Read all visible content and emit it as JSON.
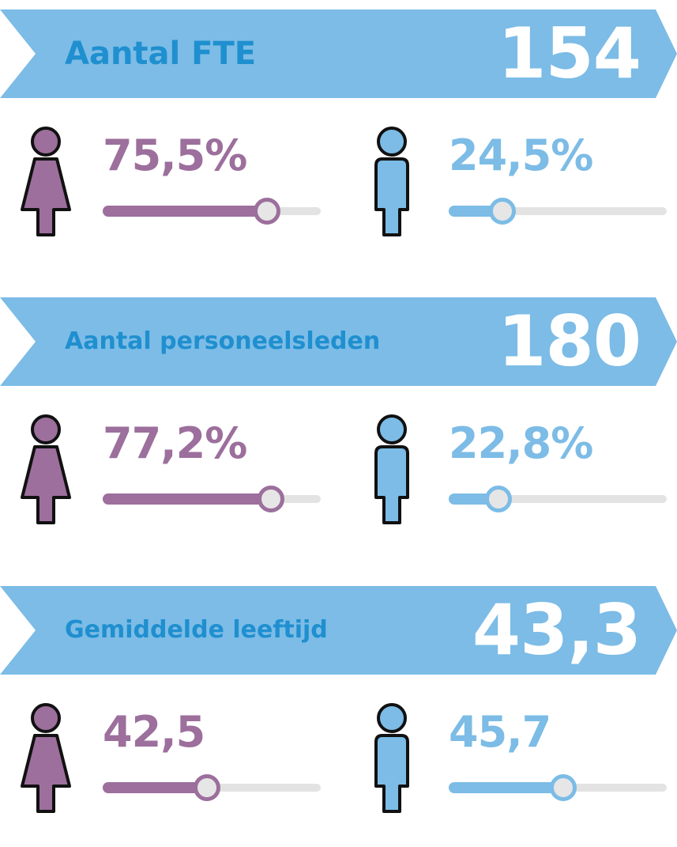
{
  "colors": {
    "banner": "#7cbce6",
    "banner_label": "#1f8fcf",
    "female": "#9c6f9c",
    "male": "#7cbce6",
    "track": "#e3e3e3"
  },
  "sections": [
    {
      "label": "Aantal FTE",
      "value": "154",
      "female": {
        "text": "75,5%",
        "level": 0.755,
        "icon": "female-person-icon"
      },
      "male": {
        "text": "24,5%",
        "level": 0.245,
        "icon": "male-person-icon"
      }
    },
    {
      "label": "Aantal personeelsleden",
      "value": "180",
      "female": {
        "text": "77,2%",
        "level": 0.772,
        "icon": "female-person-icon"
      },
      "male": {
        "text": "22,8%",
        "level": 0.228,
        "icon": "male-person-icon"
      }
    },
    {
      "label": "Gemiddelde leeftijd",
      "value": "43,3",
      "female": {
        "text": "42,5",
        "level": 0.48,
        "icon": "female-person-icon"
      },
      "male": {
        "text": "45,7",
        "level": 0.525,
        "icon": "male-person-icon"
      }
    }
  ]
}
